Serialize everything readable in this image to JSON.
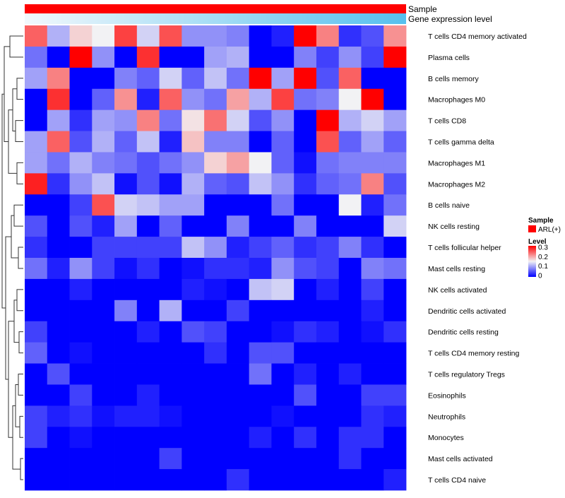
{
  "chart_data": {
    "type": "heatmap",
    "column_annotations": {
      "sample_label": "Sample",
      "gene_expression_label": "Gene expression level",
      "sample_color": "#ff0000",
      "gene_gradient": [
        "#f2f8fc",
        "#56c0ee"
      ]
    },
    "rows": [
      "T cells CD4 memory activated",
      "Plasma cells",
      "B cells memory",
      "Macrophages M0",
      "T cells CD8",
      "T cells gamma delta",
      "Macrophages M1",
      "Macrophages M2",
      "B cells naive",
      "NK cells resting",
      "T cells follicular helper",
      "Mast cells resting",
      "NK cells activated",
      "Dendritic cells activated",
      "Dendritic cells resting",
      "T cells CD4 memory resting",
      "T cells regulatory  Tregs",
      "Eosinophils",
      "Neutrophils",
      "Monocytes",
      "Mast cells activated",
      "T cells CD4 naive"
    ],
    "n_columns": 17,
    "values": [
      [
        0.24,
        0.11,
        0.17,
        0.15,
        0.26,
        0.13,
        0.25,
        0.09,
        0.09,
        0.08,
        0.0,
        0.02,
        0.3,
        0.22,
        0.03,
        0.05,
        0.21
      ],
      [
        0.07,
        0.0,
        0.3,
        0.09,
        0.0,
        0.27,
        0.0,
        0.0,
        0.1,
        0.11,
        0.0,
        0.0,
        0.08,
        0.04,
        0.09,
        0.04,
        0.3
      ],
      [
        0.1,
        0.22,
        0.0,
        0.0,
        0.08,
        0.06,
        0.13,
        0.06,
        0.12,
        0.07,
        0.3,
        0.1,
        0.3,
        0.05,
        0.24,
        0.0,
        0.0
      ],
      [
        0.0,
        0.27,
        0.0,
        0.06,
        0.21,
        0.02,
        0.24,
        0.09,
        0.07,
        0.2,
        0.11,
        0.26,
        0.07,
        0.08,
        0.15,
        0.3,
        0.0
      ],
      [
        0.0,
        0.1,
        0.03,
        0.1,
        0.09,
        0.22,
        0.07,
        0.16,
        0.23,
        0.13,
        0.05,
        0.09,
        0.0,
        0.3,
        0.11,
        0.13,
        0.1
      ],
      [
        0.1,
        0.24,
        0.05,
        0.11,
        0.06,
        0.12,
        0.02,
        0.18,
        0.08,
        0.08,
        0.0,
        0.06,
        0.0,
        0.25,
        0.06,
        0.1,
        0.06
      ],
      [
        0.1,
        0.07,
        0.11,
        0.08,
        0.07,
        0.05,
        0.07,
        0.09,
        0.17,
        0.2,
        0.15,
        0.06,
        0.01,
        0.07,
        0.08,
        0.08,
        0.08
      ],
      [
        0.28,
        0.03,
        0.09,
        0.12,
        0.01,
        0.05,
        0.01,
        0.11,
        0.06,
        0.05,
        0.12,
        0.09,
        0.03,
        0.06,
        0.07,
        0.22,
        0.05
      ],
      [
        0.0,
        0.0,
        0.04,
        0.25,
        0.13,
        0.12,
        0.1,
        0.1,
        0.0,
        0.0,
        0.0,
        0.07,
        0.0,
        0.0,
        0.15,
        0.02,
        0.07
      ],
      [
        0.05,
        0.0,
        0.05,
        0.02,
        0.1,
        0.0,
        0.06,
        0.0,
        0.0,
        0.08,
        0.0,
        0.0,
        0.08,
        0.0,
        0.0,
        0.0,
        0.13
      ],
      [
        0.03,
        0.0,
        0.0,
        0.04,
        0.04,
        0.04,
        0.04,
        0.12,
        0.09,
        0.02,
        0.04,
        0.06,
        0.03,
        0.04,
        0.08,
        0.03,
        0.0
      ],
      [
        0.07,
        0.02,
        0.09,
        0.04,
        0.01,
        0.03,
        0.0,
        0.01,
        0.03,
        0.03,
        0.02,
        0.09,
        0.05,
        0.04,
        0.0,
        0.08,
        0.07
      ],
      [
        0.0,
        0.0,
        0.02,
        0.0,
        0.0,
        0.0,
        0.0,
        0.02,
        0.01,
        0.0,
        0.12,
        0.13,
        0.0,
        0.02,
        0.0,
        0.04,
        0.0
      ],
      [
        0.0,
        0.0,
        0.0,
        0.0,
        0.08,
        0.0,
        0.11,
        0.0,
        0.0,
        0.04,
        0.0,
        0.0,
        0.0,
        0.0,
        0.0,
        0.02,
        0.0
      ],
      [
        0.04,
        0.0,
        0.0,
        0.0,
        0.0,
        0.02,
        0.0,
        0.05,
        0.04,
        0.0,
        0.0,
        0.01,
        0.03,
        0.02,
        0.0,
        0.01,
        0.03
      ],
      [
        0.06,
        0.0,
        0.01,
        0.0,
        0.0,
        0.0,
        0.0,
        0.0,
        0.03,
        0.0,
        0.05,
        0.05,
        0.0,
        0.0,
        0.0,
        0.0,
        0.0
      ],
      [
        0.0,
        0.05,
        0.0,
        0.0,
        0.0,
        0.0,
        0.0,
        0.0,
        0.0,
        0.0,
        0.07,
        0.0,
        0.02,
        0.0,
        0.02,
        0.0,
        0.0
      ],
      [
        0.0,
        0.0,
        0.04,
        0.0,
        0.0,
        0.02,
        0.0,
        0.0,
        0.0,
        0.0,
        0.0,
        0.0,
        0.05,
        0.0,
        0.0,
        0.04,
        0.04
      ],
      [
        0.04,
        0.02,
        0.03,
        0.01,
        0.02,
        0.02,
        0.01,
        0.0,
        0.0,
        0.0,
        0.0,
        0.01,
        0.0,
        0.0,
        0.0,
        0.03,
        0.02
      ],
      [
        0.04,
        0.0,
        0.01,
        0.0,
        0.0,
        0.0,
        0.0,
        0.0,
        0.0,
        0.0,
        0.02,
        0.0,
        0.03,
        0.0,
        0.03,
        0.03,
        0.0
      ],
      [
        0.0,
        0.0,
        0.0,
        0.0,
        0.0,
        0.0,
        0.04,
        0.0,
        0.0,
        0.0,
        0.0,
        0.0,
        0.0,
        0.0,
        0.03,
        0.0,
        0.0
      ],
      [
        0.0,
        0.0,
        0.0,
        0.0,
        0.0,
        0.0,
        0.0,
        0.0,
        0.0,
        0.03,
        0.0,
        0.0,
        0.0,
        0.0,
        0.0,
        0.0,
        0.02
      ]
    ],
    "color_scale": {
      "min": 0,
      "max": 0.3,
      "stops": [
        {
          "value": 0,
          "color": "#0000ff"
        },
        {
          "value": 0.15,
          "color": "#f2f2f4"
        },
        {
          "value": 0.3,
          "color": "#ff0000"
        }
      ]
    },
    "legend": {
      "sample_title": "Sample",
      "sample_entry": "ARL(+)",
      "level_title": "Level",
      "level_ticks": [
        "0.3",
        "0.2",
        "0.1",
        "0"
      ],
      "placement": "right"
    },
    "dendrogram": "rows"
  }
}
